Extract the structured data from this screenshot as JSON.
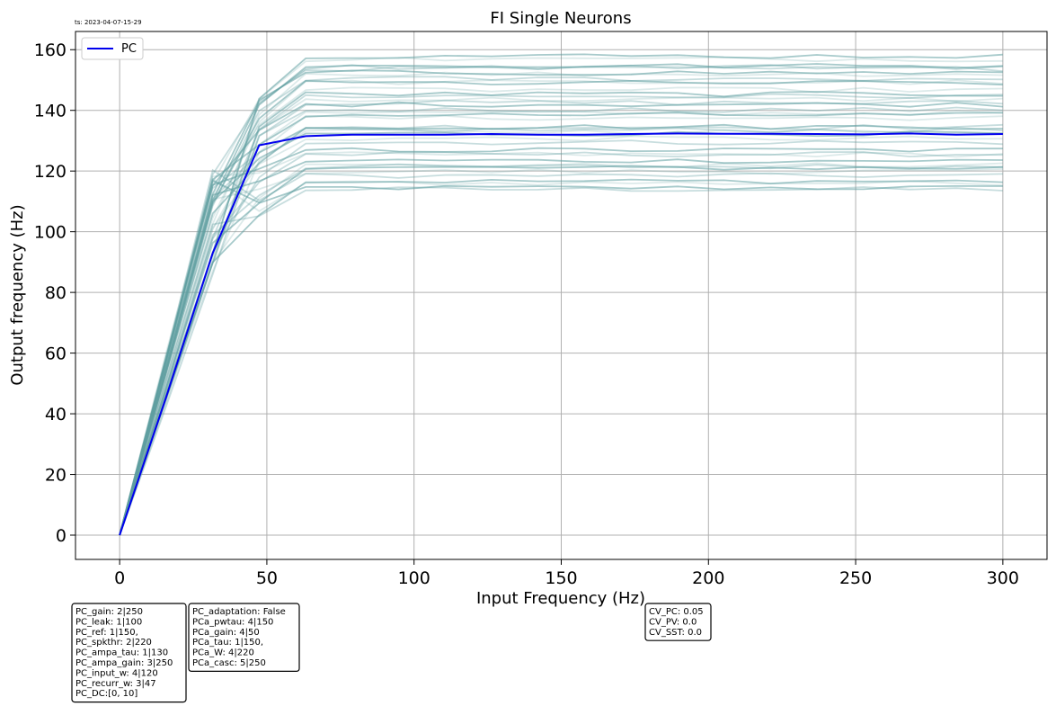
{
  "timestamp": "ts: 2023-04-07-15-29",
  "colors": {
    "main_series": "#0000ee",
    "background_series": "#5f9ea0",
    "grid": "#b0b0b0",
    "frame": "#000000"
  },
  "chart_data": {
    "type": "line",
    "title": "FI Single Neurons",
    "xlabel": "Input Frequency (Hz)",
    "ylabel": "Output frequency (Hz)",
    "xlim": [
      -15,
      315
    ],
    "ylim": [
      -8,
      166
    ],
    "xticks": [
      0,
      50,
      100,
      150,
      200,
      250,
      300
    ],
    "yticks": [
      0,
      20,
      40,
      60,
      80,
      100,
      120,
      140,
      160
    ],
    "grid": true,
    "legend_position": "top-left",
    "x": [
      0,
      15.8,
      31.6,
      47.4,
      63.2,
      78.9,
      94.7,
      110.5,
      126.3,
      142.1,
      157.9,
      173.7,
      189.5,
      205.3,
      221.1,
      236.8,
      252.6,
      268.4,
      284.2,
      300
    ],
    "series": [
      {
        "name": "PC",
        "values": [
          0,
          45.5,
          93.0,
          128.5,
          131.5,
          132.0,
          132.0,
          132.0,
          132.2,
          132.0,
          132.0,
          132.2,
          132.4,
          132.3,
          132.3,
          132.2,
          132.1,
          132.4,
          132.0,
          132.2
        ]
      }
    ],
    "background_traces": {
      "description_source": "many faint single-neuron traces",
      "count": 40,
      "plateau_min": 114,
      "plateau_max": 158,
      "values_at_31_6_min": 85,
      "values_at_31_6_max": 122
    },
    "legend": [
      "PC"
    ]
  },
  "info_boxes": [
    {
      "id": "pc-params",
      "lines": [
        "PC_gain: 2|250",
        "PC_leak: 1|100",
        "PC_ref: 1|150,",
        "PC_spkthr: 2|220",
        "PC_ampa_tau: 1|130",
        "PC_ampa_gain: 3|250",
        "PC_input_w: 4|120",
        "PC_recurr_w: 3|47",
        "PC_DC:[0, 10]"
      ]
    },
    {
      "id": "adaptation-params",
      "lines": [
        "PC_adaptation: False",
        "PCa_pwtau: 4|150",
        "PCa_gain: 4|50",
        "PCa_tau: 1|150,",
        "PCa_W: 4|220",
        "PCa_casc: 5|250"
      ]
    },
    {
      "id": "cv-params",
      "lines": [
        "CV_PC: 0.05",
        "CV_PV: 0.0",
        "CV_SST: 0.0"
      ]
    }
  ]
}
